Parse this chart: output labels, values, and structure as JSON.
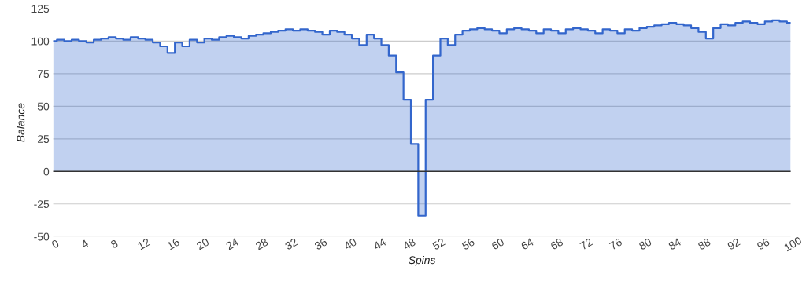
{
  "chart_data": {
    "type": "step",
    "xlabel": "Spins",
    "ylabel": "Balance",
    "x": [
      0,
      1,
      2,
      3,
      4,
      5,
      6,
      7,
      8,
      9,
      10,
      11,
      12,
      13,
      14,
      15,
      16,
      17,
      18,
      19,
      20,
      21,
      22,
      23,
      24,
      25,
      26,
      27,
      28,
      29,
      30,
      31,
      32,
      33,
      34,
      35,
      36,
      37,
      38,
      39,
      40,
      41,
      42,
      43,
      44,
      45,
      46,
      47,
      48,
      49,
      50,
      51,
      52,
      53,
      54,
      55,
      56,
      57,
      58,
      59,
      60,
      61,
      62,
      63,
      64,
      65,
      66,
      67,
      68,
      69,
      70,
      71,
      72,
      73,
      74,
      75,
      76,
      77,
      78,
      79,
      80,
      81,
      82,
      83,
      84,
      85,
      86,
      87,
      88,
      89,
      90,
      91,
      92,
      93,
      94,
      95,
      96,
      97,
      98,
      99,
      100
    ],
    "series": [
      {
        "color": "#3366cc",
        "values": [
          100,
          101,
          100,
          101,
          100,
          99,
          101,
          102,
          103,
          102,
          101,
          103,
          102,
          101,
          99,
          96,
          91,
          99,
          96,
          101,
          99,
          102,
          101,
          103,
          104,
          103,
          102,
          104,
          105,
          106,
          107,
          108,
          109,
          108,
          109,
          108,
          107,
          105,
          108,
          107,
          105,
          102,
          97,
          105,
          102,
          97,
          89,
          76,
          55,
          21,
          -34,
          55,
          89,
          102,
          97,
          105,
          108,
          109,
          110,
          109,
          108,
          106,
          109,
          110,
          109,
          108,
          106,
          109,
          108,
          106,
          109,
          110,
          109,
          108,
          106,
          109,
          108,
          106,
          109,
          108,
          110,
          111,
          112,
          113,
          114,
          113,
          112,
          110,
          107,
          102,
          110,
          113,
          112,
          114,
          115,
          114,
          113,
          115,
          116,
          115,
          114
        ]
      }
    ],
    "xlim": [
      0,
      100
    ],
    "xticks": [
      0,
      4,
      8,
      12,
      16,
      20,
      24,
      28,
      32,
      36,
      40,
      44,
      48,
      52,
      56,
      60,
      64,
      68,
      72,
      76,
      80,
      84,
      88,
      92,
      96,
      100
    ],
    "ylim": [
      -50,
      125
    ],
    "yticks": [
      -50,
      -25,
      0,
      25,
      50,
      75,
      100,
      125
    ],
    "ref_lines": [
      {
        "axis": "y",
        "value": 0,
        "color": "#333333"
      }
    ],
    "grid": "y",
    "legend": false
  }
}
